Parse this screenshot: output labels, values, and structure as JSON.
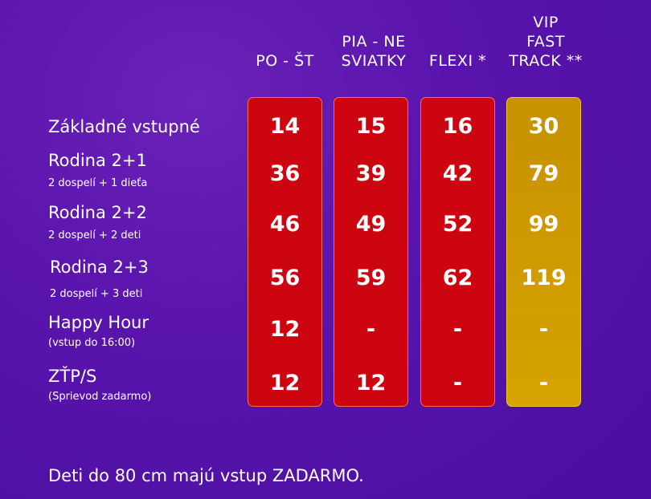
{
  "columns": [
    {
      "label": "PO - ŠT"
    },
    {
      "label": "PIA - NE SVIATKY"
    },
    {
      "label": "FLEXI *"
    },
    {
      "label": "VIP FAST TRACK **"
    }
  ],
  "header_lines": {
    "c1": [
      "PO - ŠT"
    ],
    "c2": [
      "PIA - NE",
      "SVIATKY"
    ],
    "c3": [
      "FLEXI *"
    ],
    "c4": [
      "VIP",
      "FAST",
      "TRACK **"
    ]
  },
  "rows": [
    {
      "label": "Základné vstupné",
      "sub": "",
      "values": [
        "14",
        "15",
        "16",
        "30"
      ]
    },
    {
      "label": "Rodina 2+1",
      "sub": "2 dospelí + 1 dieťa",
      "values": [
        "36",
        "39",
        "42",
        "79"
      ]
    },
    {
      "label": "Rodina 2+2",
      "sub": "2 dospelí + 2 deti",
      "values": [
        "46",
        "49",
        "52",
        "99"
      ]
    },
    {
      "label": "Rodina 2+3",
      "sub": "2 dospelí + 3 deti",
      "values": [
        "56",
        "59",
        "62",
        "119"
      ]
    },
    {
      "label": "Happy Hour",
      "sub": "(vstup do 16:00)",
      "values": [
        "12",
        "-",
        "-",
        "-"
      ]
    },
    {
      "label": "ZŤP/S",
      "sub": "(Sprievod zadarmo)",
      "values": [
        "12",
        "12",
        "-",
        "-"
      ]
    }
  ],
  "footer": "Deti do 80 cm majú vstup ZADARMO.",
  "colors": {
    "regular_column": "#cc0511",
    "vip_column": "#d6a300",
    "background": "#5a14ad"
  }
}
